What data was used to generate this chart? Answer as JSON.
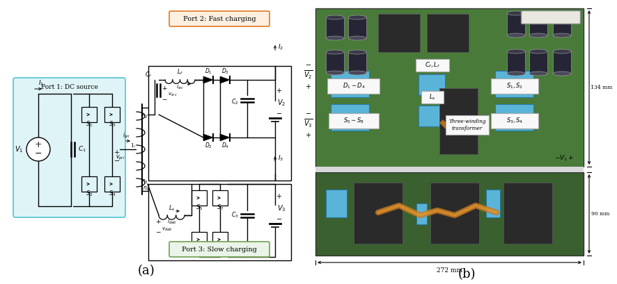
{
  "background_color": "#ffffff",
  "label_a_text": "(a)",
  "label_b_text": "(b)",
  "label_fontsize": 13,
  "label_color": "#000000",
  "port1_box_color": "#5bc8d4",
  "port1_fill_color": "#dff4f7",
  "port1_text": "Port 1: DC source",
  "port2_box_color": "#e07820",
  "port2_fill_color": "#fdf0e0",
  "port2_text": "Port 2: Fast charging",
  "port3_box_color": "#70a050",
  "port3_fill_color": "#eaf4e8",
  "port3_text": "Port 3: Slow charging",
  "pcb_green": "#4a7a3a",
  "pcb_dark": "#2a4a20",
  "cap_dark": "#252535",
  "blue_comp": "#5ab4d8",
  "white_label": "#f8f8f8"
}
